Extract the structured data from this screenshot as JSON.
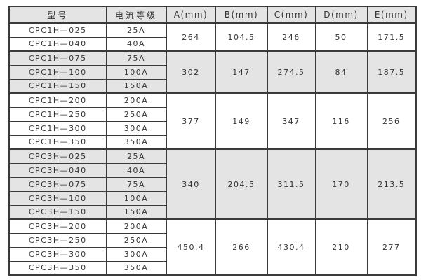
{
  "colors": {
    "border": "#3a3a3a",
    "header_bg": "#e4e4e4",
    "shaded_bg": "#e4e4e4",
    "text": "#333333",
    "page_bg": "#ffffff"
  },
  "table": {
    "headers": [
      "型号",
      "电流等级",
      "A(mm)",
      "B(mm)",
      "C(mm)",
      "D(mm)",
      "E(mm)"
    ],
    "groups": [
      {
        "shaded": false,
        "models": [
          "CPC1H—025",
          "CPC1H—040"
        ],
        "currents": [
          "25A",
          "40A"
        ],
        "dims": [
          "264",
          "104.5",
          "246",
          "50",
          "171.5"
        ]
      },
      {
        "shaded": true,
        "models": [
          "CPC1H—075",
          "CPC1H—100",
          "CPC1H—150"
        ],
        "currents": [
          "75A",
          "100A",
          "150A"
        ],
        "dims": [
          "302",
          "147",
          "274.5",
          "84",
          "187.5"
        ]
      },
      {
        "shaded": false,
        "models": [
          "CPC1H—200",
          "CPC1H—250",
          "CPC1H—300",
          "CPC1H—350"
        ],
        "currents": [
          "200A",
          "250A",
          "300A",
          "350A"
        ],
        "dims": [
          "377",
          "149",
          "347",
          "116",
          "256"
        ]
      },
      {
        "shaded": true,
        "models": [
          "CPC3H—025",
          "CPC3H—040",
          "CPC3H—075",
          "CPC3H—100",
          "CPC3H—150"
        ],
        "currents": [
          "25A",
          "40A",
          "75A",
          "100A",
          "150A"
        ],
        "dims": [
          "340",
          "204.5",
          "311.5",
          "170",
          "213.5"
        ]
      },
      {
        "shaded": false,
        "models": [
          "CPC3H—200",
          "CPC3H—250",
          "CPC3H—300",
          "CPC3H—350"
        ],
        "currents": [
          "200A",
          "250A",
          "300A",
          "350A"
        ],
        "dims": [
          "450.4",
          "266",
          "430.4",
          "210",
          "277"
        ]
      }
    ]
  },
  "chart_data": {
    "type": "table",
    "title": "",
    "columns": [
      "型号",
      "电流等级",
      "A(mm)",
      "B(mm)",
      "C(mm)",
      "D(mm)",
      "E(mm)"
    ],
    "rows": [
      [
        "CPC1H—025",
        "25A",
        "264",
        "104.5",
        "246",
        "50",
        "171.5"
      ],
      [
        "CPC1H—040",
        "40A",
        "264",
        "104.5",
        "246",
        "50",
        "171.5"
      ],
      [
        "CPC1H—075",
        "75A",
        "302",
        "147",
        "274.5",
        "84",
        "187.5"
      ],
      [
        "CPC1H—100",
        "100A",
        "302",
        "147",
        "274.5",
        "84",
        "187.5"
      ],
      [
        "CPC1H—150",
        "150A",
        "302",
        "147",
        "274.5",
        "84",
        "187.5"
      ],
      [
        "CPC1H—200",
        "200A",
        "377",
        "149",
        "347",
        "116",
        "256"
      ],
      [
        "CPC1H—250",
        "250A",
        "377",
        "149",
        "347",
        "116",
        "256"
      ],
      [
        "CPC1H—300",
        "300A",
        "377",
        "149",
        "347",
        "116",
        "256"
      ],
      [
        "CPC1H—350",
        "350A",
        "377",
        "149",
        "347",
        "116",
        "256"
      ],
      [
        "CPC3H—025",
        "25A",
        "340",
        "204.5",
        "311.5",
        "170",
        "213.5"
      ],
      [
        "CPC3H—040",
        "40A",
        "340",
        "204.5",
        "311.5",
        "170",
        "213.5"
      ],
      [
        "CPC3H—075",
        "75A",
        "340",
        "204.5",
        "311.5",
        "170",
        "213.5"
      ],
      [
        "CPC3H—100",
        "100A",
        "340",
        "204.5",
        "311.5",
        "170",
        "213.5"
      ],
      [
        "CPC3H—150",
        "150A",
        "340",
        "204.5",
        "311.5",
        "170",
        "213.5"
      ],
      [
        "CPC3H—200",
        "200A",
        "450.4",
        "266",
        "430.4",
        "210",
        "277"
      ],
      [
        "CPC3H—250",
        "250A",
        "450.4",
        "266",
        "430.4",
        "210",
        "277"
      ],
      [
        "CPC3H—300",
        "300A",
        "450.4",
        "266",
        "430.4",
        "210",
        "277"
      ],
      [
        "CPC3H—350",
        "350A",
        "450.4",
        "266",
        "430.4",
        "210",
        "277"
      ]
    ]
  }
}
